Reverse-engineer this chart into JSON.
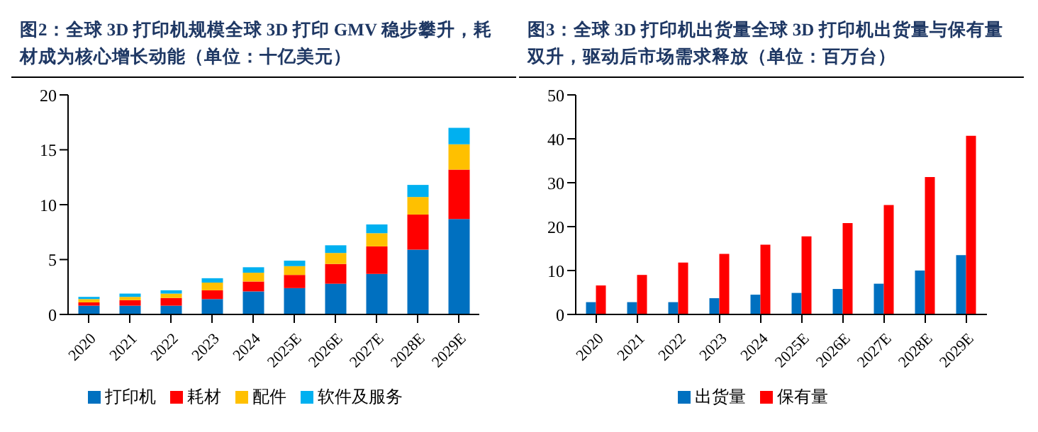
{
  "chart_data": [
    {
      "type": "bar",
      "title": "图2：全球 3D 打印机规模全球 3D 打印 GMV 稳步攀升，耗材成为核心增长动能（单位：十亿美元）",
      "stacked": true,
      "legend": "bottom",
      "grid": false,
      "categories": [
        "2020",
        "2021",
        "2022",
        "2023",
        "2024",
        "2025E",
        "2026E",
        "2027E",
        "2028E",
        "2029E"
      ],
      "ylim": [
        0,
        20
      ],
      "yticks": [
        0,
        5,
        10,
        15,
        20
      ],
      "series": [
        {
          "name": "打印机",
          "color": "#0070c0",
          "values": [
            0.8,
            0.8,
            0.8,
            1.4,
            2.1,
            2.4,
            2.8,
            3.7,
            5.9,
            8.7
          ]
        },
        {
          "name": "耗材",
          "color": "#ff0000",
          "values": [
            0.3,
            0.5,
            0.7,
            0.8,
            0.9,
            1.2,
            1.8,
            2.5,
            3.2,
            4.5
          ]
        },
        {
          "name": "配件",
          "color": "#ffc000",
          "values": [
            0.3,
            0.3,
            0.4,
            0.7,
            0.8,
            0.8,
            1.0,
            1.2,
            1.6,
            2.3
          ]
        },
        {
          "name": "软件及服务",
          "color": "#00b0f0",
          "values": [
            0.2,
            0.3,
            0.3,
            0.4,
            0.5,
            0.5,
            0.7,
            0.8,
            1.1,
            1.5
          ]
        }
      ]
    },
    {
      "type": "bar",
      "title": "图3：全球 3D 打印机出货量全球 3D 打印机出货量与保有量双升，驱动后市场需求释放（单位：百万台）",
      "legend": "bottom",
      "grid": false,
      "categories": [
        "2020",
        "2021",
        "2022",
        "2023",
        "2024",
        "2025E",
        "2026E",
        "2027E",
        "2028E",
        "2029E"
      ],
      "ylim": [
        0,
        50
      ],
      "yticks": [
        0,
        10,
        20,
        30,
        40,
        50
      ],
      "series": [
        {
          "name": "出货量",
          "color": "#0070c0",
          "values": [
            2.8,
            2.8,
            2.8,
            3.7,
            4.5,
            4.9,
            5.8,
            7.0,
            10.0,
            13.5
          ]
        },
        {
          "name": "保有量",
          "color": "#ff0000",
          "values": [
            6.6,
            9.0,
            11.8,
            13.8,
            15.9,
            17.8,
            20.8,
            24.9,
            31.3,
            40.7
          ]
        }
      ]
    }
  ]
}
